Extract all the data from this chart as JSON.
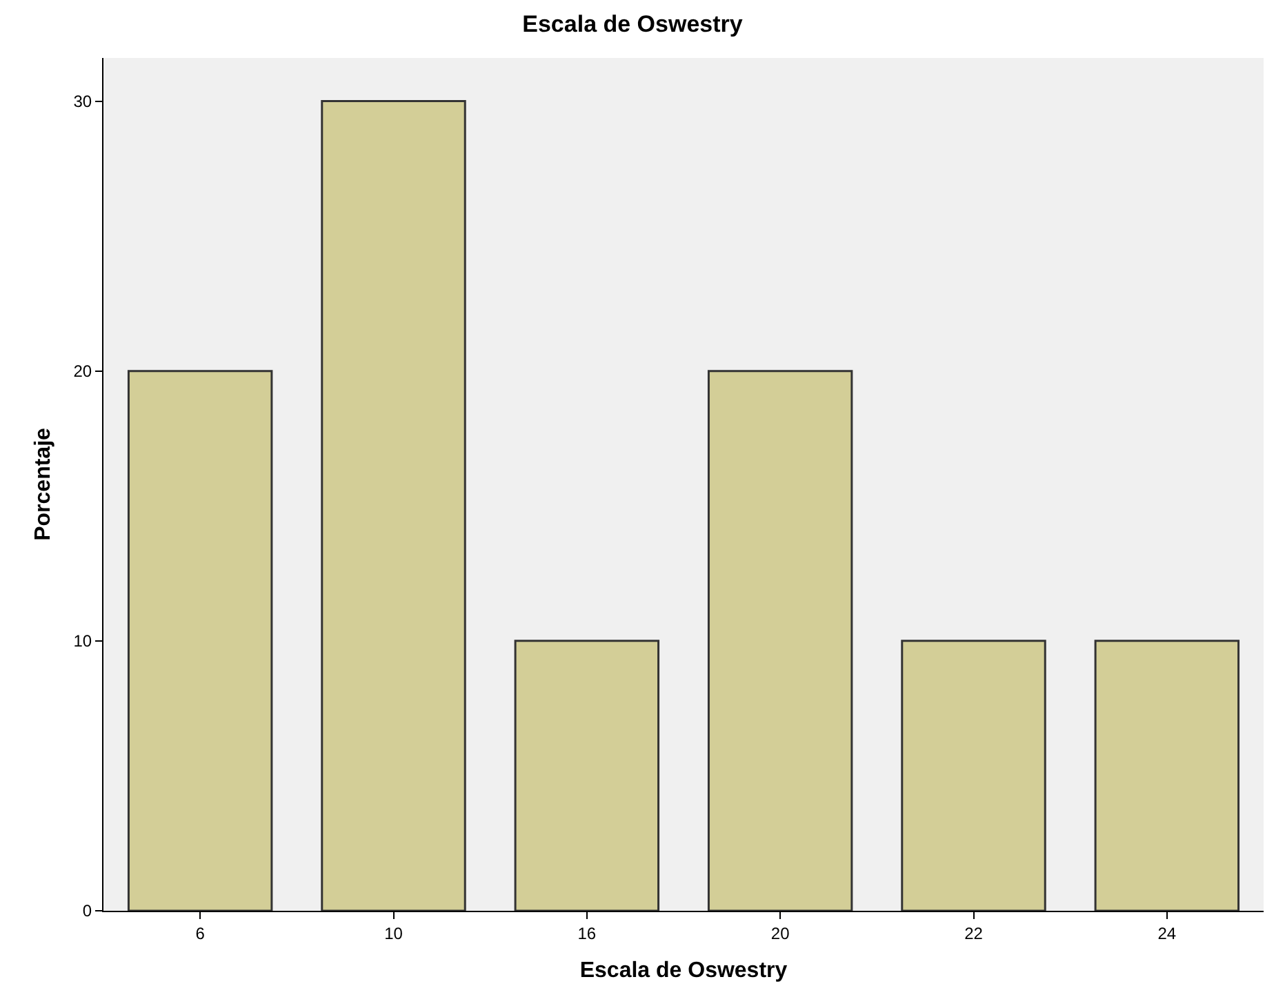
{
  "chart_data": {
    "type": "bar",
    "title": "Escala de Oswestry",
    "xlabel": "Escala de Oswestry",
    "ylabel": "Porcentaje",
    "categories": [
      "6",
      "10",
      "16",
      "20",
      "22",
      "24"
    ],
    "values": [
      20,
      30,
      10,
      20,
      10,
      10
    ],
    "color": "#d3ce97",
    "ylim": [
      0,
      31.6
    ],
    "yticks": [
      0,
      10,
      20,
      30
    ]
  }
}
